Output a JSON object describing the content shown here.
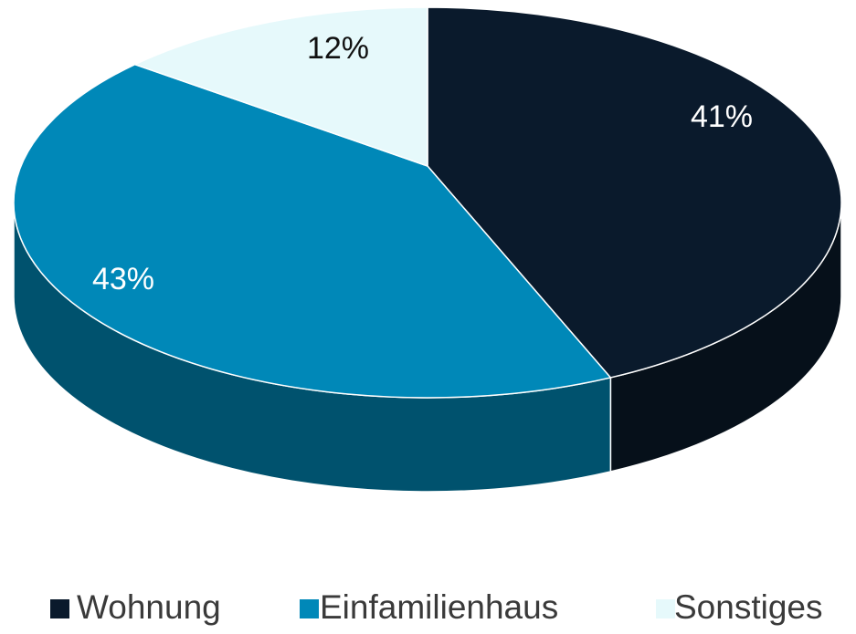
{
  "chart_data": {
    "type": "pie",
    "categories": [
      "Wohnung",
      "Einfamilienhaus",
      "Sonstiges"
    ],
    "values": [
      41,
      43,
      12
    ],
    "value_labels": [
      "41%",
      "43%",
      "12%"
    ],
    "colors": [
      "#0a1a2c",
      "#0088b8",
      "#e6f9fb"
    ],
    "legend": "bottom"
  }
}
